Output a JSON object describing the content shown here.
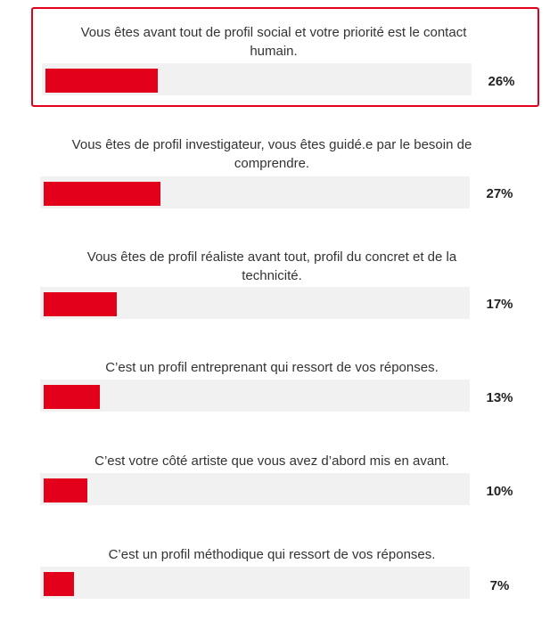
{
  "poll": {
    "options": [
      {
        "label": "Vous êtes avant tout de profil social et votre priorité est le contact humain.",
        "percent_label": "26%",
        "value": 26,
        "selected": true
      },
      {
        "label": "Vous êtes de profil investigateur, vous êtes guidé.e par le besoin de comprendre.",
        "percent_label": "27%",
        "value": 27,
        "selected": false
      },
      {
        "label": "Vous êtes de profil réaliste avant tout, profil du concret et de la technicité.",
        "percent_label": "17%",
        "value": 17,
        "selected": false
      },
      {
        "label": "C’est un profil entreprenant qui ressort de vos réponses.",
        "percent_label": "13%",
        "value": 13,
        "selected": false
      },
      {
        "label": "C’est votre côté artiste que vous avez d’abord mis en avant.",
        "percent_label": "10%",
        "value": 10,
        "selected": false
      },
      {
        "label": "C’est un profil méthodique qui ressort de vos réponses.",
        "percent_label": "7%",
        "value": 7,
        "selected": false
      }
    ],
    "colors": {
      "bar_fill": "#e2001a",
      "bar_track": "#f1f1f1",
      "selected_border": "#e2001a"
    }
  }
}
